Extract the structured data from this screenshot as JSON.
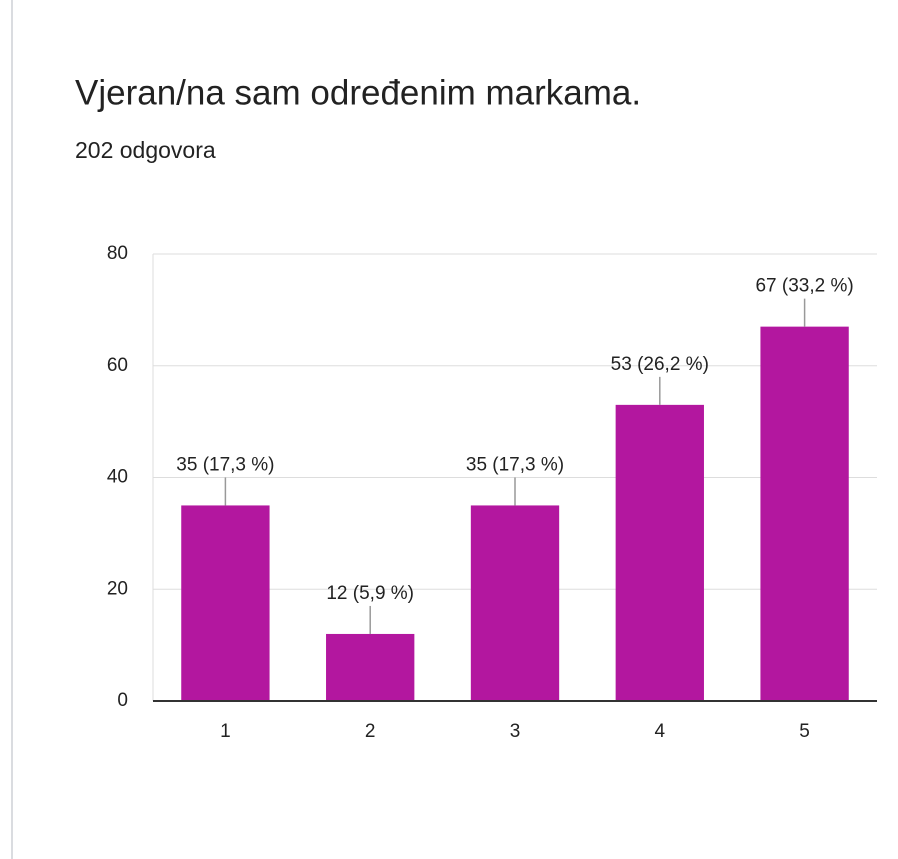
{
  "chart_data": {
    "type": "bar",
    "title": "Vjeran/na sam određenim markama.",
    "subtitle": "202 odgovora",
    "categories": [
      "1",
      "2",
      "3",
      "4",
      "5"
    ],
    "values": [
      35,
      12,
      35,
      53,
      67
    ],
    "value_labels": [
      "35 (17,3 %)",
      "12 (5,9 %)",
      "35 (17,3 %)",
      "53 (26,2 %)",
      "67 (33,2 %)"
    ],
    "color": "#b3179f",
    "ylim": [
      0,
      80
    ],
    "yticks": [
      0,
      20,
      40,
      60,
      80
    ],
    "grid": true
  }
}
